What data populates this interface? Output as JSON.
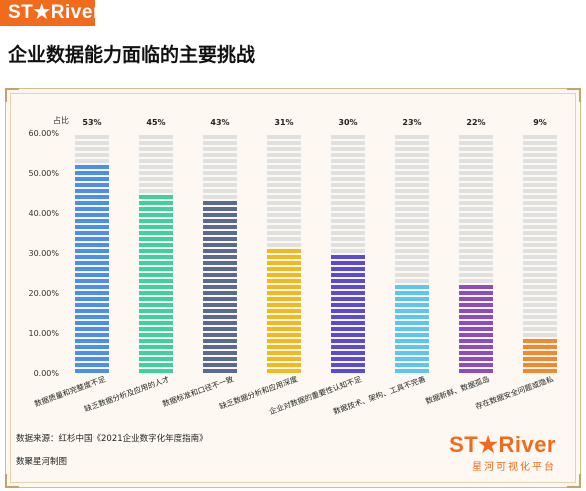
{
  "header": {
    "logo_text": "ST★River",
    "title": "企业数据能力面临的主要挑战"
  },
  "footer": {
    "source": "数据来源：红杉中国《2021企业数字化年度指南》",
    "credit": "数聚星河制图",
    "brand_logo": "ST★River",
    "brand_name": "星河可视化平台"
  },
  "chart_data": {
    "type": "bar",
    "title": "",
    "ylabel": "占比",
    "xlabel": "",
    "ylim": [
      0,
      60
    ],
    "yticks": [
      "0.00%",
      "10.00%",
      "20.00%",
      "30.00%",
      "40.00%",
      "50.00%",
      "60.00%"
    ],
    "categories": [
      "数据质量和完整度不足",
      "缺乏数据分析及应用的人才",
      "数据标准和口径不一致",
      "缺乏数据分析和应用深度",
      "企业对数据的重要性认知不足",
      "数据技术、架构、工具不完善",
      "数据新鲜、数据孤岛",
      "存在数据安全问题或隐私"
    ],
    "values": [
      53,
      45,
      43,
      31,
      30,
      23,
      22,
      9
    ],
    "value_labels": [
      "53%",
      "45%",
      "43%",
      "31%",
      "30%",
      "23%",
      "22%",
      "9%"
    ],
    "colors": [
      "#4a8ff0",
      "#3ed1a0",
      "#5b6a90",
      "#f2b91e",
      "#5a4ad8",
      "#5cc6f0",
      "#8e4cc0",
      "#f3882e"
    ],
    "background_bar_color": "#e0e0e0",
    "grid": false,
    "legend": "none"
  }
}
